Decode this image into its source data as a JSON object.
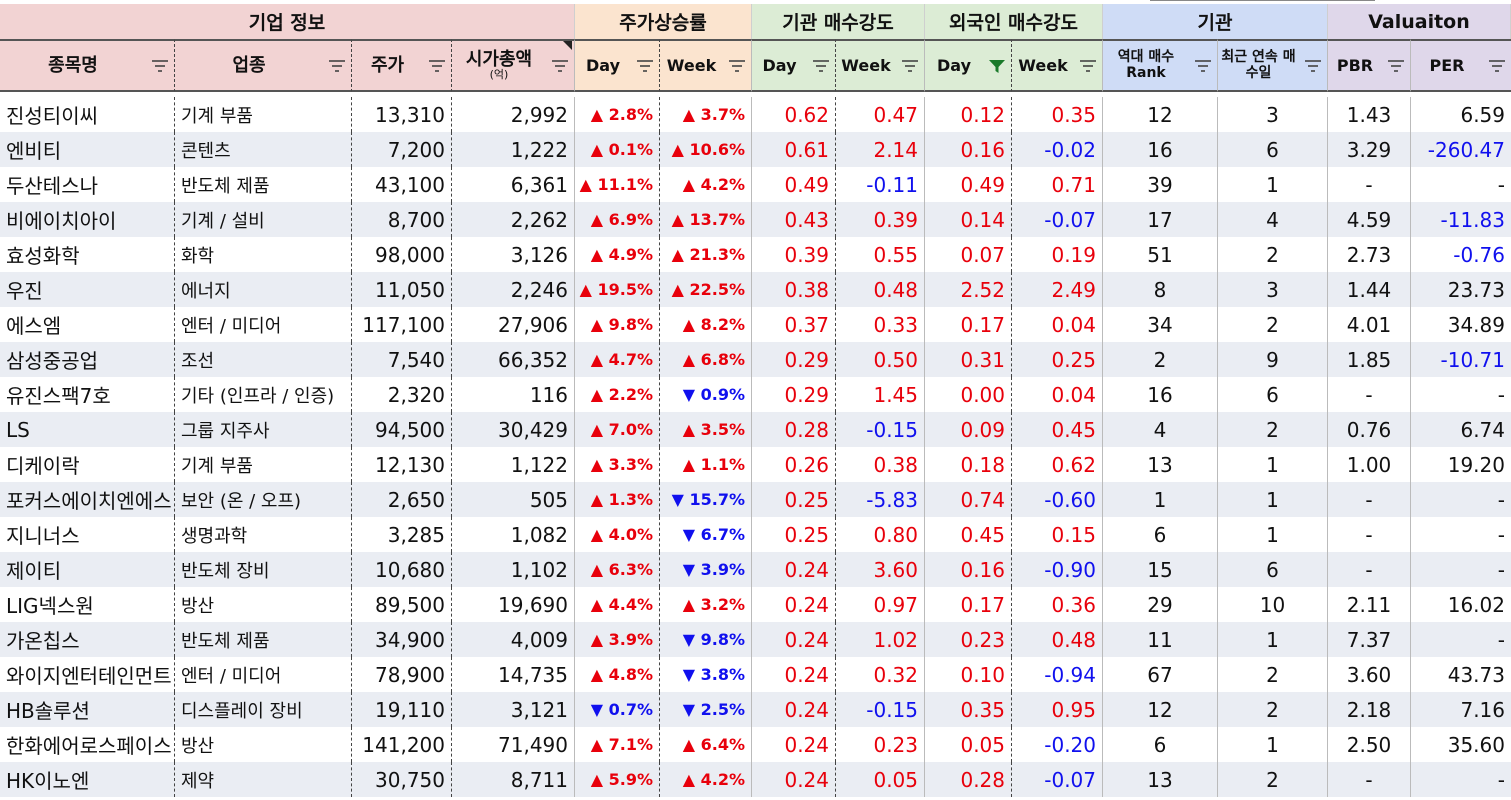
{
  "groups": [
    {
      "label": "기업 정보",
      "color": "#f2d3d3"
    },
    {
      "label": "주가상승률",
      "color": "#fbe4cf"
    },
    {
      "label": "기관 매수강도",
      "color": "#dcecd5"
    },
    {
      "label": "외국인 매수강도",
      "color": "#dcecd5"
    },
    {
      "label": "기관",
      "color": "#cfdcf6"
    },
    {
      "label": "Valuaiton",
      "color": "#dfd7ea"
    }
  ],
  "columns": [
    {
      "key": "name",
      "label": "종목명",
      "sub": "",
      "filter": "filter"
    },
    {
      "key": "industry",
      "label": "업종",
      "sub": "",
      "filter": "filter"
    },
    {
      "key": "price",
      "label": "주가",
      "sub": "",
      "filter": "filter"
    },
    {
      "key": "mcap",
      "label": "시가총액",
      "sub": "(억)",
      "filter": "filter"
    },
    {
      "key": "pday",
      "label": "Day",
      "sub": "",
      "filter": "filter"
    },
    {
      "key": "pweek",
      "label": "Week",
      "sub": "",
      "filter": "filter"
    },
    {
      "key": "iday",
      "label": "Day",
      "sub": "",
      "filter": "filter"
    },
    {
      "key": "iweek",
      "label": "Week",
      "sub": "",
      "filter": "filter"
    },
    {
      "key": "fday",
      "label": "Day",
      "sub": "",
      "filter": "filter-active"
    },
    {
      "key": "fweek",
      "label": "Week",
      "sub": "",
      "filter": "filter"
    },
    {
      "key": "rank",
      "label": "역대 매수 Rank",
      "sub": "",
      "filter": "filter"
    },
    {
      "key": "streak",
      "label": "최근 연속 매수일",
      "sub": "",
      "filter": "filter"
    },
    {
      "key": "pbr",
      "label": "PBR",
      "sub": "",
      "filter": "filter"
    },
    {
      "key": "per",
      "label": "PER",
      "sub": "",
      "filter": "filter"
    }
  ],
  "rows": [
    {
      "name": "진성티이씨",
      "industry": "기계 부품",
      "price": "13,310",
      "mcap": "2,992",
      "pday": "▲ 2.8%",
      "pweek": "▲ 3.7%",
      "iday": "0.62",
      "iweek": "0.47",
      "fday": "0.12",
      "fweek": "0.35",
      "rank": "12",
      "streak": "3",
      "pbr": "1.43",
      "per": "6.59"
    },
    {
      "name": "엔비티",
      "industry": "콘텐츠",
      "price": "7,200",
      "mcap": "1,222",
      "pday": "▲ 0.1%",
      "pweek": "▲ 10.6%",
      "iday": "0.61",
      "iweek": "2.14",
      "fday": "0.16",
      "fweek": "-0.02",
      "rank": "16",
      "streak": "6",
      "pbr": "3.29",
      "per": "-260.47"
    },
    {
      "name": "두산테스나",
      "industry": "반도체 제품",
      "price": "43,100",
      "mcap": "6,361",
      "pday": "▲ 11.1%",
      "pweek": "▲ 4.2%",
      "iday": "0.49",
      "iweek": "-0.11",
      "fday": "0.49",
      "fweek": "0.71",
      "rank": "39",
      "streak": "1",
      "pbr": "-",
      "per": "-"
    },
    {
      "name": "비에이치아이",
      "industry": "기계 / 설비",
      "price": "8,700",
      "mcap": "2,262",
      "pday": "▲ 6.9%",
      "pweek": "▲ 13.7%",
      "iday": "0.43",
      "iweek": "0.39",
      "fday": "0.14",
      "fweek": "-0.07",
      "rank": "17",
      "streak": "4",
      "pbr": "4.59",
      "per": "-11.83"
    },
    {
      "name": "효성화학",
      "industry": "화학",
      "price": "98,000",
      "mcap": "3,126",
      "pday": "▲ 4.9%",
      "pweek": "▲ 21.3%",
      "iday": "0.39",
      "iweek": "0.55",
      "fday": "0.07",
      "fweek": "0.19",
      "rank": "51",
      "streak": "2",
      "pbr": "2.73",
      "per": "-0.76"
    },
    {
      "name": "우진",
      "industry": "에너지",
      "price": "11,050",
      "mcap": "2,246",
      "pday": "▲ 19.5%",
      "pweek": "▲ 22.5%",
      "iday": "0.38",
      "iweek": "0.48",
      "fday": "2.52",
      "fweek": "2.49",
      "rank": "8",
      "streak": "3",
      "pbr": "1.44",
      "per": "23.73"
    },
    {
      "name": "에스엠",
      "industry": "엔터 / 미디어",
      "price": "117,100",
      "mcap": "27,906",
      "pday": "▲ 9.8%",
      "pweek": "▲ 8.2%",
      "iday": "0.37",
      "iweek": "0.33",
      "fday": "0.17",
      "fweek": "0.04",
      "rank": "34",
      "streak": "2",
      "pbr": "4.01",
      "per": "34.89"
    },
    {
      "name": "삼성중공업",
      "industry": "조선",
      "price": "7,540",
      "mcap": "66,352",
      "pday": "▲ 4.7%",
      "pweek": "▲ 6.8%",
      "iday": "0.29",
      "iweek": "0.50",
      "fday": "0.31",
      "fweek": "0.25",
      "rank": "2",
      "streak": "9",
      "pbr": "1.85",
      "per": "-10.71"
    },
    {
      "name": "유진스팩7호",
      "industry": "기타 (인프라 / 인증)",
      "price": "2,320",
      "mcap": "116",
      "pday": "▲ 2.2%",
      "pweek": "▼ 0.9%",
      "iday": "0.29",
      "iweek": "1.45",
      "fday": "0.00",
      "fweek": "0.04",
      "rank": "16",
      "streak": "6",
      "pbr": "-",
      "per": "-"
    },
    {
      "name": "LS",
      "industry": "그룹 지주사",
      "price": "94,500",
      "mcap": "30,429",
      "pday": "▲ 7.0%",
      "pweek": "▲ 3.5%",
      "iday": "0.28",
      "iweek": "-0.15",
      "fday": "0.09",
      "fweek": "0.45",
      "rank": "4",
      "streak": "2",
      "pbr": "0.76",
      "per": "6.74"
    },
    {
      "name": "디케이락",
      "industry": "기계 부품",
      "price": "12,130",
      "mcap": "1,122",
      "pday": "▲ 3.3%",
      "pweek": "▲ 1.1%",
      "iday": "0.26",
      "iweek": "0.38",
      "fday": "0.18",
      "fweek": "0.62",
      "rank": "13",
      "streak": "1",
      "pbr": "1.00",
      "per": "19.20"
    },
    {
      "name": "포커스에이치엔에스",
      "industry": "보안 (온 / 오프)",
      "price": "2,650",
      "mcap": "505",
      "pday": "▲ 1.3%",
      "pweek": "▼ 15.7%",
      "iday": "0.25",
      "iweek": "-5.83",
      "fday": "0.74",
      "fweek": "-0.60",
      "rank": "1",
      "streak": "1",
      "pbr": "-",
      "per": "-"
    },
    {
      "name": "지니너스",
      "industry": "생명과학",
      "price": "3,285",
      "mcap": "1,082",
      "pday": "▲ 4.0%",
      "pweek": "▼ 6.7%",
      "iday": "0.25",
      "iweek": "0.80",
      "fday": "0.45",
      "fweek": "0.15",
      "rank": "6",
      "streak": "1",
      "pbr": "-",
      "per": "-"
    },
    {
      "name": "제이티",
      "industry": "반도체 장비",
      "price": "10,680",
      "mcap": "1,102",
      "pday": "▲ 6.3%",
      "pweek": "▼ 3.9%",
      "iday": "0.24",
      "iweek": "3.60",
      "fday": "0.16",
      "fweek": "-0.90",
      "rank": "15",
      "streak": "6",
      "pbr": "-",
      "per": "-"
    },
    {
      "name": "LIG넥스원",
      "industry": "방산",
      "price": "89,500",
      "mcap": "19,690",
      "pday": "▲ 4.4%",
      "pweek": "▲ 3.2%",
      "iday": "0.24",
      "iweek": "0.97",
      "fday": "0.17",
      "fweek": "0.36",
      "rank": "29",
      "streak": "10",
      "pbr": "2.11",
      "per": "16.02"
    },
    {
      "name": "가온칩스",
      "industry": "반도체 제품",
      "price": "34,900",
      "mcap": "4,009",
      "pday": "▲ 3.9%",
      "pweek": "▼ 9.8%",
      "iday": "0.24",
      "iweek": "1.02",
      "fday": "0.23",
      "fweek": "0.48",
      "rank": "11",
      "streak": "1",
      "pbr": "7.37",
      "per": "-"
    },
    {
      "name": "와이지엔터테인먼트",
      "industry": "엔터 / 미디어",
      "price": "78,900",
      "mcap": "14,735",
      "pday": "▲ 4.8%",
      "pweek": "▼ 3.8%",
      "iday": "0.24",
      "iweek": "0.32",
      "fday": "0.10",
      "fweek": "-0.94",
      "rank": "67",
      "streak": "2",
      "pbr": "3.60",
      "per": "43.73"
    },
    {
      "name": "HB솔루션",
      "industry": "디스플레이 장비",
      "price": "19,110",
      "mcap": "3,121",
      "pday": "▼ 0.7%",
      "pweek": "▼ 2.5%",
      "iday": "0.24",
      "iweek": "-0.15",
      "fday": "0.35",
      "fweek": "0.95",
      "rank": "12",
      "streak": "2",
      "pbr": "2.18",
      "per": "7.16"
    },
    {
      "name": "한화에어로스페이스",
      "industry": "방산",
      "price": "141,200",
      "mcap": "71,490",
      "pday": "▲ 7.1%",
      "pweek": "▲ 6.4%",
      "iday": "0.24",
      "iweek": "0.23",
      "fday": "0.05",
      "fweek": "-0.20",
      "rank": "6",
      "streak": "1",
      "pbr": "2.50",
      "per": "35.60"
    },
    {
      "name": "HK이노엔",
      "industry": "제약",
      "price": "30,750",
      "mcap": "8,711",
      "pday": "▲ 5.9%",
      "pweek": "▲ 4.2%",
      "iday": "0.24",
      "iweek": "0.05",
      "fday": "0.28",
      "fweek": "-0.07",
      "rank": "13",
      "streak": "2",
      "pbr": "-",
      "per": "-"
    }
  ],
  "colors": {
    "up": "#e8000b",
    "down": "#1010ee",
    "row_alt": "#eaedf3",
    "header_company": "#f2d3d3",
    "header_price": "#fbe4cf",
    "header_strength": "#dcecd5",
    "header_inst": "#cfdcf6",
    "header_valuation": "#dfd7ea"
  }
}
